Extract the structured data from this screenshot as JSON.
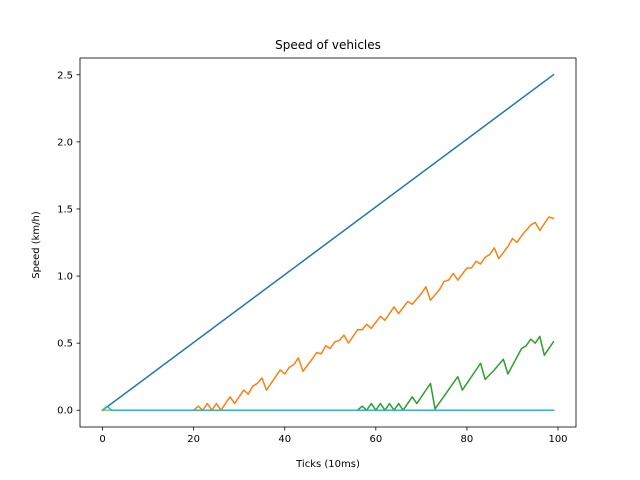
{
  "chart_data": {
    "type": "line",
    "title": "Speed of vehicles",
    "xlabel": "Ticks (10ms)",
    "ylabel": "Speed (km/h)",
    "xlim": [
      -4.95,
      103.95
    ],
    "ylim": [
      -0.125,
      2.625
    ],
    "xticks": [
      0,
      20,
      40,
      60,
      80,
      100
    ],
    "yticks": [
      0.0,
      0.5,
      1.0,
      1.5,
      2.0,
      2.5
    ],
    "xtick_labels": [
      "0",
      "20",
      "40",
      "60",
      "80",
      "100"
    ],
    "ytick_labels": [
      "0.0",
      "0.5",
      "1.0",
      "1.5",
      "2.0",
      "2.5"
    ],
    "grid": false,
    "legend": "none",
    "series": [
      {
        "color": "#1f77b4",
        "points": [
          [
            0,
            0.0
          ],
          [
            99,
            2.5
          ]
        ]
      },
      {
        "color": "#ff7f0e",
        "points": [
          [
            0,
            0.0
          ],
          [
            20,
            0.0
          ],
          [
            21,
            0.03
          ],
          [
            22,
            0.0
          ],
          [
            23,
            0.05
          ],
          [
            24,
            0.0
          ],
          [
            25,
            0.05
          ],
          [
            26,
            0.0
          ],
          [
            27,
            0.05
          ],
          [
            28,
            0.1
          ],
          [
            29,
            0.05
          ],
          [
            30,
            0.1
          ],
          [
            31,
            0.15
          ],
          [
            32,
            0.12
          ],
          [
            33,
            0.18
          ],
          [
            34,
            0.2
          ],
          [
            35,
            0.24
          ],
          [
            36,
            0.15
          ],
          [
            38,
            0.25
          ],
          [
            39,
            0.3
          ],
          [
            40,
            0.27
          ],
          [
            41,
            0.32
          ],
          [
            42,
            0.34
          ],
          [
            43,
            0.39
          ],
          [
            44,
            0.29
          ],
          [
            46,
            0.38
          ],
          [
            47,
            0.43
          ],
          [
            48,
            0.42
          ],
          [
            49,
            0.48
          ],
          [
            50,
            0.46
          ],
          [
            51,
            0.51
          ],
          [
            52,
            0.52
          ],
          [
            53,
            0.56
          ],
          [
            54,
            0.5
          ],
          [
            56,
            0.6
          ],
          [
            57,
            0.6
          ],
          [
            58,
            0.64
          ],
          [
            59,
            0.61
          ],
          [
            61,
            0.7
          ],
          [
            62,
            0.67
          ],
          [
            64,
            0.77
          ],
          [
            65,
            0.72
          ],
          [
            67,
            0.81
          ],
          [
            68,
            0.79
          ],
          [
            70,
            0.87
          ],
          [
            71,
            0.92
          ],
          [
            72,
            0.82
          ],
          [
            74,
            0.9
          ],
          [
            75,
            0.96
          ],
          [
            76,
            0.97
          ],
          [
            77,
            1.02
          ],
          [
            78,
            0.97
          ],
          [
            80,
            1.06
          ],
          [
            81,
            1.06
          ],
          [
            82,
            1.11
          ],
          [
            83,
            1.09
          ],
          [
            84,
            1.14
          ],
          [
            85,
            1.16
          ],
          [
            86,
            1.21
          ],
          [
            87,
            1.13
          ],
          [
            89,
            1.22
          ],
          [
            90,
            1.28
          ],
          [
            91,
            1.25
          ],
          [
            92,
            1.3
          ],
          [
            93,
            1.34
          ],
          [
            94,
            1.38
          ],
          [
            95,
            1.4
          ],
          [
            96,
            1.34
          ],
          [
            98,
            1.44
          ],
          [
            99,
            1.43
          ]
        ]
      },
      {
        "color": "#2ca02c",
        "points": [
          [
            0,
            0.0
          ],
          [
            56,
            0.0
          ],
          [
            57,
            0.03
          ],
          [
            58,
            0.0
          ],
          [
            59,
            0.05
          ],
          [
            60,
            0.0
          ],
          [
            61,
            0.05
          ],
          [
            62,
            0.0
          ],
          [
            63,
            0.05
          ],
          [
            64,
            0.0
          ],
          [
            65,
            0.05
          ],
          [
            66,
            0.0
          ],
          [
            68,
            0.1
          ],
          [
            69,
            0.05
          ],
          [
            72,
            0.2
          ],
          [
            73,
            0.01
          ],
          [
            78,
            0.25
          ],
          [
            79,
            0.15
          ],
          [
            83,
            0.35
          ],
          [
            84,
            0.23
          ],
          [
            86,
            0.3
          ],
          [
            88,
            0.38
          ],
          [
            89,
            0.27
          ],
          [
            92,
            0.46
          ],
          [
            93,
            0.48
          ],
          [
            94,
            0.53
          ],
          [
            95,
            0.5
          ],
          [
            96,
            0.55
          ],
          [
            97,
            0.41
          ],
          [
            99,
            0.51
          ]
        ]
      },
      {
        "color": "#d62728",
        "points": [
          [
            0,
            0.0
          ],
          [
            99,
            0.0
          ]
        ]
      },
      {
        "color": "#9467bd",
        "points": [
          [
            0,
            0.0
          ],
          [
            99,
            0.0
          ]
        ]
      },
      {
        "color": "#8c564b",
        "points": [
          [
            0,
            0.0
          ],
          [
            99,
            0.0
          ]
        ]
      },
      {
        "color": "#e377c2",
        "points": [
          [
            0,
            0.0
          ],
          [
            99,
            0.0
          ]
        ]
      },
      {
        "color": "#7f7f7f",
        "points": [
          [
            0,
            0.0
          ],
          [
            99,
            0.0
          ]
        ]
      },
      {
        "color": "#bcbd22",
        "points": [
          [
            0,
            0.0
          ],
          [
            99,
            0.0
          ]
        ]
      },
      {
        "color": "#17becf",
        "points": [
          [
            0,
            0.0
          ],
          [
            1,
            0.03
          ],
          [
            2,
            0.0
          ],
          [
            99,
            0.0
          ]
        ]
      }
    ]
  }
}
